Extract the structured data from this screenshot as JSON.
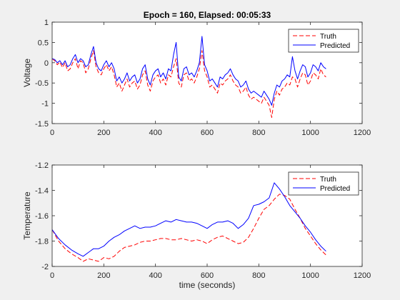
{
  "figure": {
    "background": "#f0f0f0"
  },
  "chart_data": [
    {
      "type": "line",
      "title": "Epoch = 160, Elapsed: 00:05:33",
      "xlabel": "",
      "ylabel": "Voltage",
      "xlim": [
        0,
        1200
      ],
      "ylim": [
        -1.5,
        1
      ],
      "xticks": [
        0,
        200,
        400,
        600,
        800,
        1000,
        1200
      ],
      "xtick_labels": [
        "0",
        "200",
        "400",
        "600",
        "800",
        "1000",
        "1200"
      ],
      "yticks": [
        -1.5,
        -1,
        -0.5,
        0,
        0.5,
        1
      ],
      "ytick_labels": [
        "-1.5",
        "-1",
        "-0.5",
        "0",
        "0.5",
        "1"
      ],
      "grid": false,
      "legend": "top-right",
      "x": [
        0,
        10,
        20,
        30,
        40,
        50,
        60,
        70,
        80,
        90,
        100,
        110,
        120,
        130,
        140,
        150,
        160,
        170,
        180,
        190,
        200,
        210,
        220,
        230,
        240,
        250,
        260,
        270,
        280,
        290,
        300,
        310,
        320,
        330,
        340,
        350,
        360,
        370,
        380,
        390,
        400,
        410,
        420,
        430,
        440,
        450,
        460,
        470,
        480,
        490,
        500,
        510,
        520,
        530,
        540,
        550,
        560,
        570,
        580,
        590,
        600,
        610,
        620,
        630,
        640,
        650,
        660,
        670,
        680,
        690,
        700,
        710,
        720,
        730,
        740,
        750,
        760,
        770,
        780,
        790,
        800,
        810,
        820,
        830,
        840,
        850,
        860,
        870,
        880,
        890,
        900,
        910,
        920,
        930,
        940,
        950,
        960,
        970,
        980,
        990,
        1000,
        1010,
        1020,
        1030,
        1040,
        1050,
        1060
      ],
      "series": [
        {
          "name": "Truth",
          "color": "#ff0000",
          "dash": "dashed",
          "values": [
            0.1,
            0.05,
            -0.05,
            0.02,
            -0.12,
            0.0,
            -0.2,
            -0.15,
            0.0,
            0.1,
            -0.15,
            0.05,
            0.0,
            -0.25,
            -0.15,
            0.1,
            0.3,
            -0.1,
            -0.25,
            -0.3,
            -0.15,
            -0.05,
            -0.2,
            -0.1,
            -0.3,
            -0.6,
            -0.5,
            -0.7,
            -0.55,
            -0.4,
            -0.6,
            -0.5,
            -0.45,
            -0.65,
            -0.55,
            -0.3,
            -0.2,
            -0.55,
            -0.7,
            -0.45,
            -0.35,
            -0.3,
            -0.5,
            -0.4,
            -0.55,
            -0.3,
            -0.35,
            -0.1,
            0.1,
            -0.5,
            -0.6,
            -0.3,
            -0.25,
            -0.45,
            -0.4,
            -0.5,
            -0.35,
            -0.15,
            0.3,
            -0.2,
            -0.35,
            -0.6,
            -0.55,
            -0.65,
            -0.75,
            -0.5,
            -0.55,
            -0.45,
            -0.4,
            -0.3,
            -0.45,
            -0.55,
            -0.6,
            -0.75,
            -0.7,
            -0.6,
            -0.8,
            -0.9,
            -0.85,
            -0.9,
            -0.95,
            -1.0,
            -0.85,
            -0.95,
            -1.05,
            -1.35,
            -0.9,
            -0.7,
            -0.8,
            -0.65,
            -0.6,
            -0.5,
            -0.55,
            -0.35,
            -0.4,
            -0.6,
            -0.4,
            -0.25,
            -0.3,
            -0.55,
            -0.45,
            -0.25,
            -0.3,
            -0.4,
            -0.15,
            -0.3,
            -0.35
          ]
        },
        {
          "name": "Predicted",
          "color": "#0000ff",
          "dash": "solid",
          "values": [
            0.1,
            0.08,
            0.0,
            0.05,
            -0.05,
            0.05,
            -0.1,
            -0.05,
            0.1,
            0.2,
            0.0,
            0.1,
            0.05,
            -0.1,
            -0.05,
            0.2,
            0.4,
            0.0,
            -0.15,
            -0.2,
            -0.05,
            0.05,
            -0.1,
            0.0,
            -0.15,
            -0.45,
            -0.35,
            -0.5,
            -0.4,
            -0.25,
            -0.45,
            -0.35,
            -0.3,
            -0.5,
            -0.4,
            -0.15,
            -0.05,
            -0.4,
            -0.55,
            -0.3,
            -0.2,
            -0.15,
            -0.35,
            -0.25,
            -0.4,
            -0.15,
            -0.2,
            0.2,
            0.5,
            -0.35,
            -0.45,
            -0.15,
            -0.1,
            -0.3,
            -0.25,
            -0.35,
            -0.2,
            0.0,
            0.65,
            -0.05,
            -0.2,
            -0.45,
            -0.4,
            -0.5,
            -0.6,
            -0.35,
            -0.4,
            -0.3,
            -0.25,
            -0.15,
            -0.3,
            -0.4,
            -0.45,
            -0.6,
            -0.55,
            -0.45,
            -0.65,
            -0.75,
            -0.7,
            -0.75,
            -0.8,
            -0.85,
            -0.7,
            -0.8,
            -0.9,
            -1.05,
            -0.75,
            -0.55,
            -0.6,
            -0.45,
            -0.4,
            -0.3,
            -0.35,
            0.15,
            -0.2,
            -0.4,
            -0.2,
            -0.05,
            -0.1,
            -0.35,
            -0.25,
            -0.05,
            -0.1,
            -0.2,
            0.0,
            -0.1,
            -0.15
          ]
        }
      ]
    },
    {
      "type": "line",
      "title": "",
      "xlabel": "time (seconds)",
      "ylabel": "Temperature",
      "xlim": [
        0,
        1200
      ],
      "ylim": [
        -2,
        -1.2
      ],
      "xticks": [
        0,
        200,
        400,
        600,
        800,
        1000,
        1200
      ],
      "xtick_labels": [
        "0",
        "200",
        "400",
        "600",
        "800",
        "1000",
        "1200"
      ],
      "yticks": [
        -2,
        -1.8,
        -1.6,
        -1.4,
        -1.2
      ],
      "ytick_labels": [
        "-2",
        "-1.8",
        "-1.6",
        "-1.4",
        "-1.2"
      ],
      "grid": false,
      "legend": "top-right",
      "x": [
        0,
        25,
        50,
        75,
        100,
        120,
        140,
        160,
        180,
        200,
        220,
        240,
        260,
        280,
        300,
        320,
        340,
        360,
        380,
        400,
        420,
        440,
        460,
        480,
        500,
        520,
        540,
        560,
        580,
        600,
        620,
        640,
        660,
        680,
        700,
        720,
        740,
        760,
        780,
        800,
        820,
        840,
        860,
        880,
        900,
        920,
        940,
        960,
        980,
        1000,
        1020,
        1040,
        1060
      ],
      "series": [
        {
          "name": "Truth",
          "color": "#ff0000",
          "dash": "dashed",
          "values": [
            -1.71,
            -1.8,
            -1.86,
            -1.9,
            -1.93,
            -1.96,
            -1.94,
            -1.95,
            -1.96,
            -1.93,
            -1.94,
            -1.92,
            -1.88,
            -1.85,
            -1.84,
            -1.83,
            -1.81,
            -1.8,
            -1.8,
            -1.79,
            -1.78,
            -1.78,
            -1.79,
            -1.79,
            -1.78,
            -1.79,
            -1.8,
            -1.79,
            -1.8,
            -1.82,
            -1.79,
            -1.77,
            -1.76,
            -1.78,
            -1.8,
            -1.82,
            -1.81,
            -1.77,
            -1.7,
            -1.62,
            -1.55,
            -1.52,
            -1.47,
            -1.43,
            -1.44,
            -1.47,
            -1.55,
            -1.62,
            -1.7,
            -1.76,
            -1.82,
            -1.87,
            -1.91
          ]
        },
        {
          "name": "Predicted",
          "color": "#0000ff",
          "dash": "solid",
          "values": [
            -1.71,
            -1.78,
            -1.83,
            -1.87,
            -1.9,
            -1.92,
            -1.89,
            -1.86,
            -1.86,
            -1.84,
            -1.8,
            -1.77,
            -1.75,
            -1.72,
            -1.7,
            -1.68,
            -1.7,
            -1.69,
            -1.69,
            -1.68,
            -1.66,
            -1.64,
            -1.65,
            -1.63,
            -1.64,
            -1.65,
            -1.65,
            -1.66,
            -1.68,
            -1.7,
            -1.67,
            -1.65,
            -1.65,
            -1.64,
            -1.66,
            -1.7,
            -1.67,
            -1.62,
            -1.52,
            -1.51,
            -1.49,
            -1.46,
            -1.34,
            -1.39,
            -1.45,
            -1.52,
            -1.57,
            -1.62,
            -1.68,
            -1.73,
            -1.79,
            -1.84,
            -1.88
          ]
        }
      ]
    }
  ]
}
